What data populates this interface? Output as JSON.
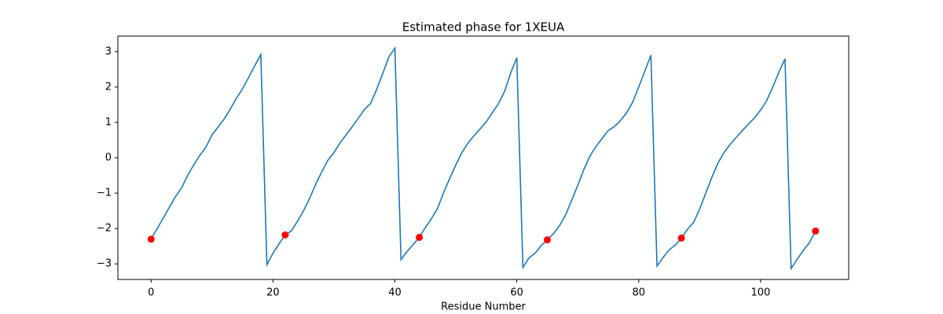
{
  "chart_data": {
    "type": "line",
    "title": "Estimated phase for 1XEUA",
    "x_label": "Residue Number",
    "xlim": [
      -5.45,
      114.45
    ],
    "ylim": [
      -3.44,
      3.44
    ],
    "xticks": [
      0,
      20,
      40,
      60,
      80,
      100
    ],
    "yticks": [
      {
        "value": -3,
        "label": "−3"
      },
      {
        "value": -2,
        "label": "−2"
      },
      {
        "value": -1,
        "label": "−1"
      },
      0,
      1,
      2,
      3
    ],
    "grid": false,
    "series": [
      {
        "style": "line",
        "color": "#1f77b4",
        "x": [
          0,
          1,
          2,
          3,
          4,
          5,
          6,
          7,
          8,
          9,
          10,
          11,
          12,
          13,
          14,
          15,
          16,
          17,
          18,
          19,
          20,
          21,
          22,
          23,
          24,
          25,
          26,
          27,
          28,
          29,
          30,
          31,
          32,
          33,
          34,
          35,
          36,
          37,
          38,
          39,
          40,
          41,
          42,
          43,
          44,
          45,
          46,
          47,
          48,
          49,
          50,
          51,
          52,
          53,
          54,
          55,
          56,
          57,
          58,
          59,
          60,
          61,
          62,
          63,
          64,
          65,
          66,
          67,
          68,
          69,
          70,
          71,
          72,
          73,
          74,
          75,
          76,
          77,
          78,
          79,
          80,
          81,
          82,
          83,
          84,
          85,
          86,
          87,
          88,
          89,
          90,
          91,
          92,
          93,
          94,
          95,
          96,
          97,
          98,
          99,
          100,
          101,
          102,
          103,
          104,
          105,
          106,
          107,
          108,
          109
        ],
        "values": [
          -2.3,
          -2.0,
          -1.7,
          -1.4,
          -1.1,
          -0.85,
          -0.5,
          -0.2,
          0.07,
          0.3,
          0.65,
          0.87,
          1.1,
          1.38,
          1.68,
          1.95,
          2.27,
          2.6,
          2.92,
          -3.02,
          -2.7,
          -2.43,
          -2.18,
          -2.07,
          -1.8,
          -1.5,
          -1.15,
          -0.75,
          -0.4,
          -0.07,
          0.15,
          0.42,
          0.65,
          0.88,
          1.12,
          1.37,
          1.53,
          1.93,
          2.38,
          2.85,
          3.1,
          -2.88,
          -2.65,
          -2.45,
          -2.25,
          -1.97,
          -1.72,
          -1.43,
          -0.98,
          -0.58,
          -0.2,
          0.15,
          0.42,
          0.63,
          0.82,
          1.02,
          1.28,
          1.53,
          1.88,
          2.4,
          2.83,
          -3.1,
          -2.83,
          -2.7,
          -2.48,
          -2.32,
          -2.15,
          -1.92,
          -1.62,
          -1.2,
          -0.78,
          -0.33,
          0.05,
          0.32,
          0.55,
          0.77,
          0.88,
          1.05,
          1.27,
          1.57,
          2.0,
          2.45,
          2.9,
          -3.06,
          -2.82,
          -2.6,
          -2.47,
          -2.27,
          -2.02,
          -1.83,
          -1.45,
          -1.0,
          -0.55,
          -0.15,
          0.15,
          0.38,
          0.58,
          0.77,
          0.95,
          1.13,
          1.35,
          1.62,
          2.0,
          2.42,
          2.8,
          -3.13,
          -2.87,
          -2.62,
          -2.4,
          -2.07
        ]
      },
      {
        "style": "marker",
        "color": "#ff0000",
        "x": [
          0,
          22,
          44,
          65,
          87,
          109
        ],
        "values": [
          -2.3,
          -2.18,
          -2.25,
          -2.32,
          -2.27,
          -2.07
        ]
      }
    ]
  }
}
